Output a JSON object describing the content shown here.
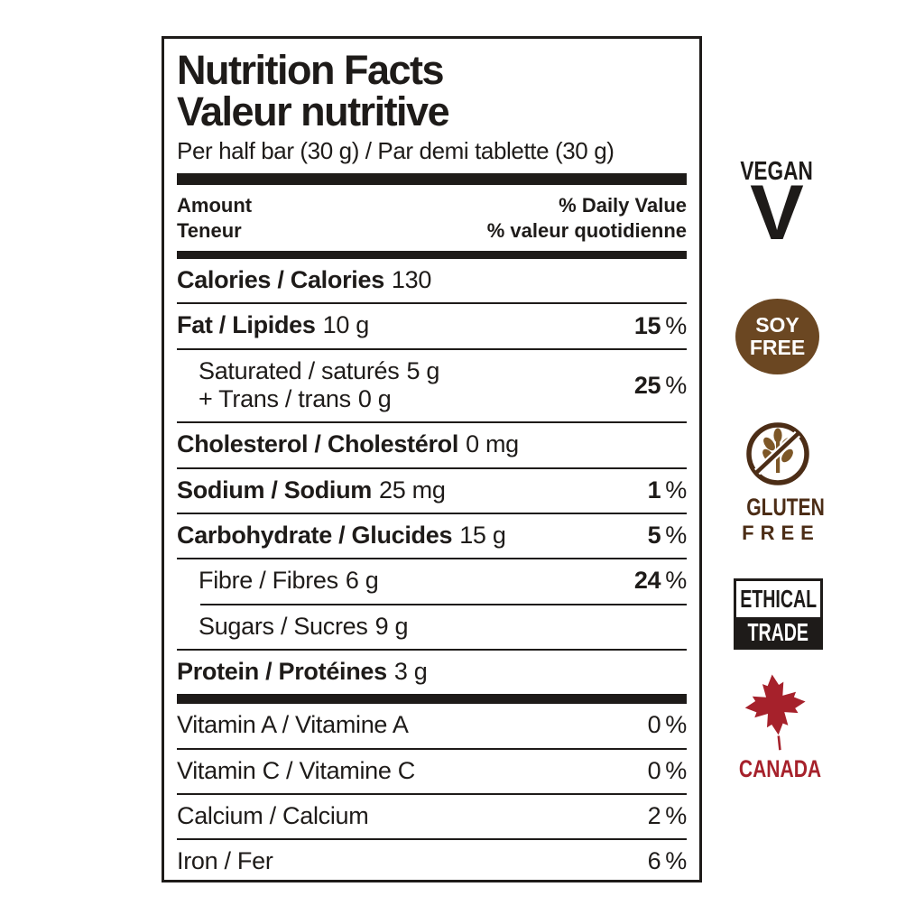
{
  "theme": {
    "ink": "#1e1b19",
    "soy_brown": "#6b4722",
    "gluten_dark_brown": "#4c2d16",
    "gluten_wheat_brown": "#7d5727",
    "canada_red": "#a6212b"
  },
  "label": {
    "title_en": "Nutrition Facts",
    "title_fr": "Valeur nutritive",
    "serving": "Per half bar (30 g) / Par demi tablette (30 g)",
    "header": {
      "amount_en": "Amount",
      "amount_fr": "Teneur",
      "dv_en": "% Daily Value",
      "dv_fr": "% valeur quotidienne"
    },
    "rows": [
      {
        "id": "calories",
        "bold": true,
        "indent": false,
        "lines": [
          {
            "label": "Calories / Calories",
            "value": "130"
          }
        ],
        "pct": null,
        "pct_bold": false,
        "sep_after": "thin"
      },
      {
        "id": "fat",
        "bold": true,
        "indent": false,
        "lines": [
          {
            "label": "Fat / Lipides",
            "value": "10 g"
          }
        ],
        "pct": "15",
        "pct_bold": true,
        "sep_after": "thin"
      },
      {
        "id": "saturated-trans",
        "bold": false,
        "indent": true,
        "lines": [
          {
            "label": "Saturated / saturés",
            "value": "5 g"
          },
          {
            "label": "+ Trans / trans",
            "value": "0 g"
          }
        ],
        "pct": "25",
        "pct_bold": true,
        "sep_after": "thin"
      },
      {
        "id": "cholesterol",
        "bold": true,
        "indent": false,
        "lines": [
          {
            "label": "Cholesterol / Cholestérol",
            "value": "0 mg"
          }
        ],
        "pct": null,
        "pct_bold": false,
        "sep_after": "thin"
      },
      {
        "id": "sodium",
        "bold": true,
        "indent": false,
        "lines": [
          {
            "label": "Sodium / Sodium",
            "value": "25 mg"
          }
        ],
        "pct": "1",
        "pct_bold": true,
        "sep_after": "thin"
      },
      {
        "id": "carbohydrate",
        "bold": true,
        "indent": false,
        "lines": [
          {
            "label": "Carbohydrate / Glucides",
            "value": "15 g"
          }
        ],
        "pct": "5",
        "pct_bold": true,
        "sep_after": "thin"
      },
      {
        "id": "fibre",
        "bold": false,
        "indent": true,
        "lines": [
          {
            "label": "Fibre / Fibres",
            "value": "6 g"
          }
        ],
        "pct": "24",
        "pct_bold": true,
        "sep_after": "thin-indent"
      },
      {
        "id": "sugars",
        "bold": false,
        "indent": true,
        "lines": [
          {
            "label": "Sugars / Sucres",
            "value": "9 g"
          }
        ],
        "pct": null,
        "pct_bold": false,
        "sep_after": "thin"
      },
      {
        "id": "protein",
        "bold": true,
        "indent": false,
        "lines": [
          {
            "label": "Protein / Protéines",
            "value": "3 g"
          }
        ],
        "pct": null,
        "pct_bold": false,
        "sep_after": "thick"
      },
      {
        "id": "vitamin-a",
        "bold": false,
        "indent": false,
        "lines": [
          {
            "label": "Vitamin A / Vitamine A",
            "value": ""
          }
        ],
        "pct": "0",
        "pct_bold": false,
        "sep_after": "thin"
      },
      {
        "id": "vitamin-c",
        "bold": false,
        "indent": false,
        "lines": [
          {
            "label": "Vitamin C / Vitamine C",
            "value": ""
          }
        ],
        "pct": "0",
        "pct_bold": false,
        "sep_after": "thin"
      },
      {
        "id": "calcium",
        "bold": false,
        "indent": false,
        "lines": [
          {
            "label": "Calcium / Calcium",
            "value": ""
          }
        ],
        "pct": "2",
        "pct_bold": false,
        "sep_after": "thin"
      },
      {
        "id": "iron",
        "bold": false,
        "indent": false,
        "lines": [
          {
            "label": "Iron / Fer",
            "value": ""
          }
        ],
        "pct": "6",
        "pct_bold": false,
        "sep_after": "none"
      }
    ],
    "percent_sign": "%"
  },
  "badges": {
    "vegan": {
      "word": "VEGAN",
      "letter": "V"
    },
    "soy_free": {
      "line1": "SOY",
      "line2": "FREE"
    },
    "gluten_free": {
      "line1": "GLUTEN",
      "line2": "FREE"
    },
    "ethical_trade": {
      "line1": "ETHICAL",
      "line2": "TRADE"
    },
    "canada": {
      "word": "CANADA"
    }
  }
}
